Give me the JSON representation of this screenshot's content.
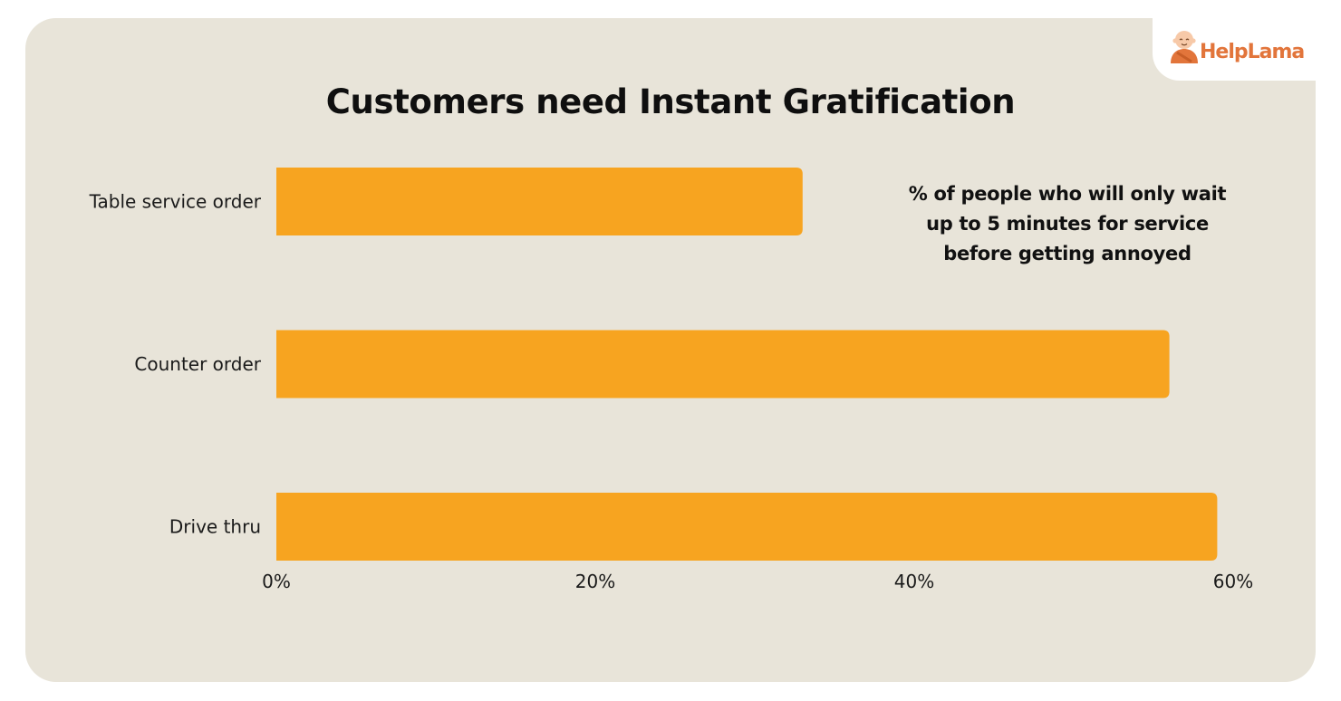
{
  "brand": {
    "logo_text_help": "Help",
    "logo_text_lama": "Lama",
    "logo_icon": "monk-mascot-icon",
    "accent_color": "#e2753b"
  },
  "chart_data": {
    "type": "bar",
    "orientation": "horizontal",
    "title": "Customers need Instant Gratification",
    "annotation": [
      "% of people who will only wait",
      "up to 5 minutes for service",
      "before getting annoyed"
    ],
    "categories": [
      "Table service order",
      "Counter order",
      "Drive thru"
    ],
    "values": [
      33,
      56,
      59
    ],
    "unit": "%",
    "xlim": [
      0,
      60
    ],
    "xticks": [
      0,
      20,
      40,
      60
    ],
    "xtick_labels": [
      "0%",
      "20%",
      "40%",
      "60%"
    ],
    "grid": false,
    "bar_color": "#f7a420",
    "background_color": "#e8e4d9"
  }
}
